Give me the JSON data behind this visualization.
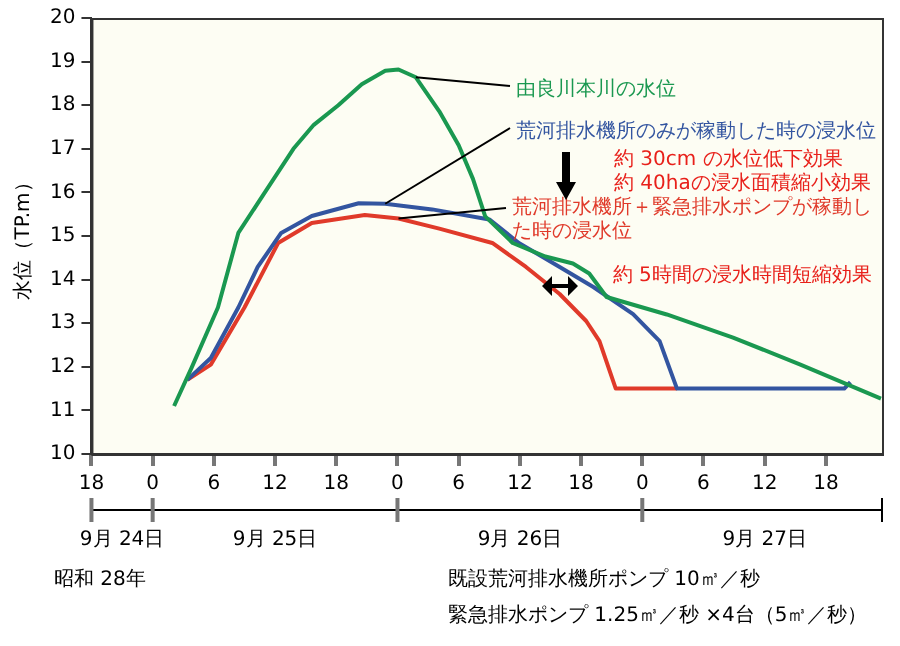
{
  "chart_data": {
    "type": "line",
    "ylabel": "水位（TP.m）",
    "xlim": [
      "--09-24T18:00",
      "--09-27T23:30"
    ],
    "ylim": [
      10,
      20
    ],
    "xticks": [
      {
        "value": "--09-24T18:00",
        "label": "18"
      },
      {
        "value": "--09-25T00:00",
        "label": "0"
      },
      {
        "value": "--09-25T06:00",
        "label": "6"
      },
      {
        "value": "--09-25T12:00",
        "label": "12"
      },
      {
        "value": "--09-25T18:00",
        "label": "18"
      },
      {
        "value": "--09-26T00:00",
        "label": "0"
      },
      {
        "value": "--09-26T06:00",
        "label": "6"
      },
      {
        "value": "--09-26T12:00",
        "label": "12"
      },
      {
        "value": "--09-26T18:00",
        "label": "18"
      },
      {
        "value": "--09-27T00:00",
        "label": "0"
      },
      {
        "value": "--09-27T06:00",
        "label": "6"
      },
      {
        "value": "--09-27T12:00",
        "label": "12"
      },
      {
        "value": "--09-27T18:00",
        "label": "18"
      }
    ],
    "x2lim": [
      "--09-24T18:00",
      "--09-27T23:30"
    ],
    "x2ticks": [
      {
        "value": "--09-24T21:00",
        "label": "9月 24日"
      },
      {
        "value": "--09-25T12:00",
        "label": "9月 25日"
      },
      {
        "value": "--09-26T12:00",
        "label": "9月 26日"
      },
      {
        "value": "--09-27T12:00",
        "label": "9月 27日"
      }
    ],
    "yticks": [
      10,
      11,
      12,
      13,
      14,
      15,
      16,
      17,
      18,
      19,
      20
    ],
    "grid": false,
    "legend": false,
    "marker": "none",
    "line_style": "solid",
    "series": [
      {
        "name": "由良川本川の水位",
        "color": "#1a9850",
        "x": [
          "--09-25T02:06",
          "--09-25T03:48",
          "--09-25T06:24",
          "--09-25T08:24",
          "--09-25T11:00",
          "--09-25T13:48",
          "--09-25T15:48",
          "--09-25T18:12",
          "--09-25T20:30",
          "--09-25T22:48",
          "--09-26T00:06",
          "--09-26T01:48",
          "--09-26T04:06",
          "--09-26T06:00",
          "--09-26T07:24",
          "--09-26T08:36",
          "--09-26T11:18",
          "--09-26T14:30",
          "--09-26T17:12",
          "--09-26T18:48",
          "--09-26T20:30",
          "--09-27T02:24",
          "--09-27T08:54",
          "--09-27T15:30",
          "--09-27T23:24"
        ],
        "values": [
          11.1,
          11.97,
          13.36,
          15.07,
          16.0,
          17.0,
          17.55,
          18.0,
          18.48,
          18.79,
          18.82,
          18.64,
          17.86,
          17.08,
          16.31,
          15.45,
          14.84,
          14.53,
          14.37,
          14.14,
          13.6,
          13.2,
          12.67,
          12.05,
          11.27
        ]
      },
      {
        "name": "荒河排水機所のみが稼動した時の浸水位",
        "color": "#3355a0",
        "x": [
          "--09-25T03:24",
          "--09-25T05:42",
          "--09-25T08:24",
          "--09-25T10:18",
          "--09-25T12:36",
          "--09-25T15:36",
          "--09-25T20:12",
          "--09-25T22:48",
          "--09-26T03:24",
          "--09-26T09:00",
          "--09-26T11:54",
          "--09-26T15:54",
          "--09-26T19:12",
          "--09-26T23:06",
          "--09-27T01:42",
          "--09-27T03:24",
          "--09-27T19:48",
          "--09-27T20:24"
        ],
        "values": [
          11.7,
          12.2,
          13.36,
          14.29,
          15.07,
          15.46,
          15.75,
          15.74,
          15.61,
          15.38,
          14.84,
          14.29,
          13.83,
          13.21,
          12.59,
          11.5,
          11.5,
          11.65
        ]
      },
      {
        "name": "荒河排水機所＋緊急排水ポンプが稼動した時の浸水位",
        "color": "#e03a2a",
        "x": [
          "--09-25T03:24",
          "--09-25T05:42",
          "--09-25T09:00",
          "--09-25T12:18",
          "--09-25T15:36",
          "--09-25T20:48",
          "--09-26T00:06",
          "--09-26T04:06",
          "--09-26T09:18",
          "--09-26T12:36",
          "--09-26T15:54",
          "--09-26T18:30",
          "--09-26T19:48",
          "--09-26T21:24",
          "--09-27T03:24"
        ],
        "values": [
          11.7,
          12.05,
          13.36,
          14.84,
          15.3,
          15.48,
          15.4,
          15.17,
          14.84,
          14.29,
          13.67,
          13.05,
          12.59,
          11.5,
          11.5
        ]
      }
    ],
    "annotations": [
      "約 30cm の水位低下効果",
      "約 40haの浸水面積縮小効果",
      {
        "text": "約 5時間の浸水時間短縮効果",
        "x": "--09-26T16:00",
        "y": 14
      },
      "昭和 28年",
      "既設荒河排水機所ポンプ 10㎥／秒",
      "緊急排水ポンプ 1.25㎥／秒 ×4台（5㎥／秒）"
    ]
  }
}
